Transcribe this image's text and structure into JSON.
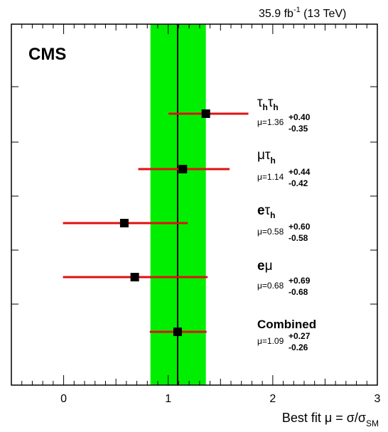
{
  "chart_data": {
    "type": "scatter",
    "title": "",
    "luminosity_label": "35.9 fb",
    "luminosity_exponent": "-1",
    "luminosity_energy": "(13 TeV)",
    "experiment_label": "CMS",
    "xlabel_prefix": "Best fit μ = σ/σ",
    "xlabel_subscript": "SM",
    "xlim": [
      -0.5,
      3.0
    ],
    "xticks": [
      0,
      1,
      2,
      3
    ],
    "xtick_labels": [
      "0",
      "1",
      "2",
      "3"
    ],
    "band": {
      "low": 0.83,
      "high": 1.36,
      "color": "#00ee00"
    },
    "central_line": {
      "value": 1.09,
      "color": "#000000"
    },
    "point_color": "#000000",
    "errorbar_color": "#e01010",
    "points": [
      {
        "channel": "ττ",
        "value": 1.36,
        "err_up": 0.4,
        "err_down": 0.35,
        "mu_text": "μ=1.36",
        "up_text": "+0.40",
        "down_text": "-0.35"
      },
      {
        "channel": "μτ",
        "value": 1.14,
        "err_up": 0.44,
        "err_down": 0.42,
        "mu_text": "μ=1.14",
        "up_text": "+0.44",
        "down_text": "-0.42"
      },
      {
        "channel": "eτ",
        "value": 0.58,
        "err_up": 0.6,
        "err_down": 0.58,
        "mu_text": "μ=0.58",
        "up_text": "+0.60",
        "down_text": "-0.58"
      },
      {
        "channel": "eμ",
        "value": 0.68,
        "err_up": 0.69,
        "err_down": 0.68,
        "mu_text": "μ=0.68",
        "up_text": "+0.69",
        "down_text": "-0.68"
      },
      {
        "channel": "Combined",
        "value": 1.09,
        "err_up": 0.27,
        "err_down": 0.26,
        "mu_text": "μ=1.09",
        "up_text": "+0.27",
        "down_text": "-0.26"
      }
    ]
  },
  "channel_labels": {
    "tautau": {
      "a": "τ",
      "a_sub": "h",
      "b": "τ",
      "b_sub": "h"
    },
    "mutau": {
      "a": "μτ",
      "sub": "h"
    },
    "etau": {
      "a": "e",
      "b": "τ",
      "sub": "h"
    },
    "emu": {
      "a": "e",
      "b": "μ"
    },
    "combined": "Combined"
  }
}
